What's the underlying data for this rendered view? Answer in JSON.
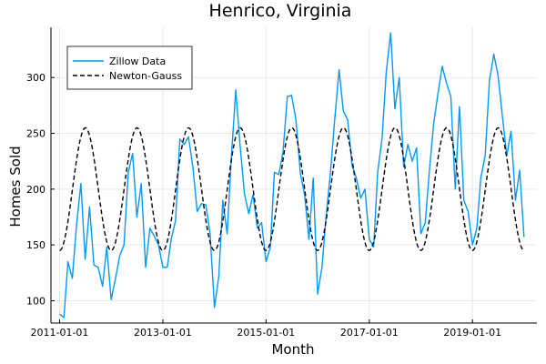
{
  "chart_data": {
    "type": "line",
    "title": "Henrico, Virginia",
    "xlabel": "Month",
    "ylabel": "Homes Sold",
    "xlim": [
      "2010-11-01",
      "2020-04-01"
    ],
    "ylim": [
      80,
      345
    ],
    "x_ticks": [
      "2011-01-01",
      "2013-01-01",
      "2015-01-01",
      "2017-01-01",
      "2019-01-01"
    ],
    "y_ticks": [
      100,
      150,
      200,
      250,
      300
    ],
    "grid": true,
    "legend_position": "top-left",
    "series": [
      {
        "name": "Zillow Data",
        "color": "#009AFA",
        "style": "solid",
        "points": [
          [
            "2011-01-01",
            88
          ],
          [
            "2011-02-01",
            85
          ],
          [
            "2011-03-01",
            135
          ],
          [
            "2011-04-01",
            120
          ],
          [
            "2011-05-01",
            168
          ],
          [
            "2011-06-01",
            205
          ],
          [
            "2011-07-01",
            137
          ],
          [
            "2011-08-01",
            184
          ],
          [
            "2011-09-01",
            132
          ],
          [
            "2011-10-01",
            130
          ],
          [
            "2011-11-01",
            113
          ],
          [
            "2011-12-01",
            148
          ],
          [
            "2012-01-01",
            101
          ],
          [
            "2012-02-01",
            120
          ],
          [
            "2012-03-01",
            140
          ],
          [
            "2012-04-01",
            150
          ],
          [
            "2012-05-01",
            215
          ],
          [
            "2012-06-01",
            232
          ],
          [
            "2012-07-01",
            175
          ],
          [
            "2012-08-01",
            205
          ],
          [
            "2012-09-01",
            130
          ],
          [
            "2012-10-01",
            165
          ],
          [
            "2012-11-01",
            158
          ],
          [
            "2012-12-01",
            150
          ],
          [
            "2013-01-01",
            130
          ],
          [
            "2013-02-01",
            130
          ],
          [
            "2013-03-01",
            155
          ],
          [
            "2013-04-01",
            172
          ],
          [
            "2013-05-01",
            245
          ],
          [
            "2013-06-01",
            240
          ],
          [
            "2013-07-01",
            247
          ],
          [
            "2013-08-01",
            220
          ],
          [
            "2013-09-01",
            180
          ],
          [
            "2013-10-01",
            187
          ],
          [
            "2013-11-01",
            186
          ],
          [
            "2013-12-01",
            160
          ],
          [
            "2014-01-01",
            94
          ],
          [
            "2014-02-01",
            122
          ],
          [
            "2014-03-01",
            190
          ],
          [
            "2014-04-01",
            160
          ],
          [
            "2014-05-01",
            229
          ],
          [
            "2014-06-01",
            289
          ],
          [
            "2014-07-01",
            240
          ],
          [
            "2014-08-01",
            196
          ],
          [
            "2014-09-01",
            178
          ],
          [
            "2014-10-01",
            195
          ],
          [
            "2014-11-01",
            165
          ],
          [
            "2014-12-01",
            170
          ],
          [
            "2015-01-01",
            135
          ],
          [
            "2015-02-01",
            148
          ],
          [
            "2015-03-01",
            215
          ],
          [
            "2015-04-01",
            213
          ],
          [
            "2015-05-01",
            233
          ],
          [
            "2015-06-01",
            283
          ],
          [
            "2015-07-01",
            284
          ],
          [
            "2015-08-01",
            262
          ],
          [
            "2015-09-01",
            214
          ],
          [
            "2015-10-01",
            195
          ],
          [
            "2015-11-01",
            155
          ],
          [
            "2015-12-01",
            210
          ],
          [
            "2016-01-01",
            106
          ],
          [
            "2016-02-01",
            130
          ],
          [
            "2016-03-01",
            175
          ],
          [
            "2016-04-01",
            215
          ],
          [
            "2016-05-01",
            262
          ],
          [
            "2016-06-01",
            307
          ],
          [
            "2016-07-01",
            270
          ],
          [
            "2016-08-01",
            262
          ],
          [
            "2016-09-01",
            221
          ],
          [
            "2016-10-01",
            210
          ],
          [
            "2016-11-01",
            192
          ],
          [
            "2016-12-01",
            200
          ],
          [
            "2017-01-01",
            155
          ],
          [
            "2017-02-01",
            148
          ],
          [
            "2017-03-01",
            215
          ],
          [
            "2017-04-01",
            245
          ],
          [
            "2017-05-01",
            305
          ],
          [
            "2017-06-01",
            340
          ],
          [
            "2017-07-01",
            272
          ],
          [
            "2017-08-01",
            300
          ],
          [
            "2017-09-01",
            220
          ],
          [
            "2017-10-01",
            240
          ],
          [
            "2017-11-01",
            225
          ],
          [
            "2017-12-01",
            237
          ],
          [
            "2018-01-01",
            160
          ],
          [
            "2018-02-01",
            170
          ],
          [
            "2018-03-01",
            215
          ],
          [
            "2018-04-01",
            258
          ],
          [
            "2018-05-01",
            285
          ],
          [
            "2018-06-01",
            310
          ],
          [
            "2018-07-01",
            295
          ],
          [
            "2018-08-01",
            283
          ],
          [
            "2018-09-01",
            200
          ],
          [
            "2018-10-01",
            274
          ],
          [
            "2018-11-01",
            190
          ],
          [
            "2018-12-01",
            180
          ],
          [
            "2019-01-01",
            150
          ],
          [
            "2019-02-01",
            165
          ],
          [
            "2019-03-01",
            210
          ],
          [
            "2019-04-01",
            230
          ],
          [
            "2019-05-01",
            297
          ],
          [
            "2019-06-01",
            321
          ],
          [
            "2019-07-01",
            302
          ],
          [
            "2019-08-01",
            265
          ],
          [
            "2019-09-01",
            230
          ],
          [
            "2019-10-01",
            252
          ],
          [
            "2019-11-01",
            190
          ],
          [
            "2019-12-01",
            217
          ],
          [
            "2020-01-01",
            157
          ]
        ]
      },
      {
        "name": "Newton-Gauss",
        "color": "#000000",
        "style": "dashed",
        "model": {
          "type": "sinusoid",
          "mean": 200,
          "amplitude": 55,
          "period_months": 12,
          "peak_month": 7
        },
        "x_start": "2011-01-01",
        "x_end": "2020-01-01"
      }
    ]
  }
}
